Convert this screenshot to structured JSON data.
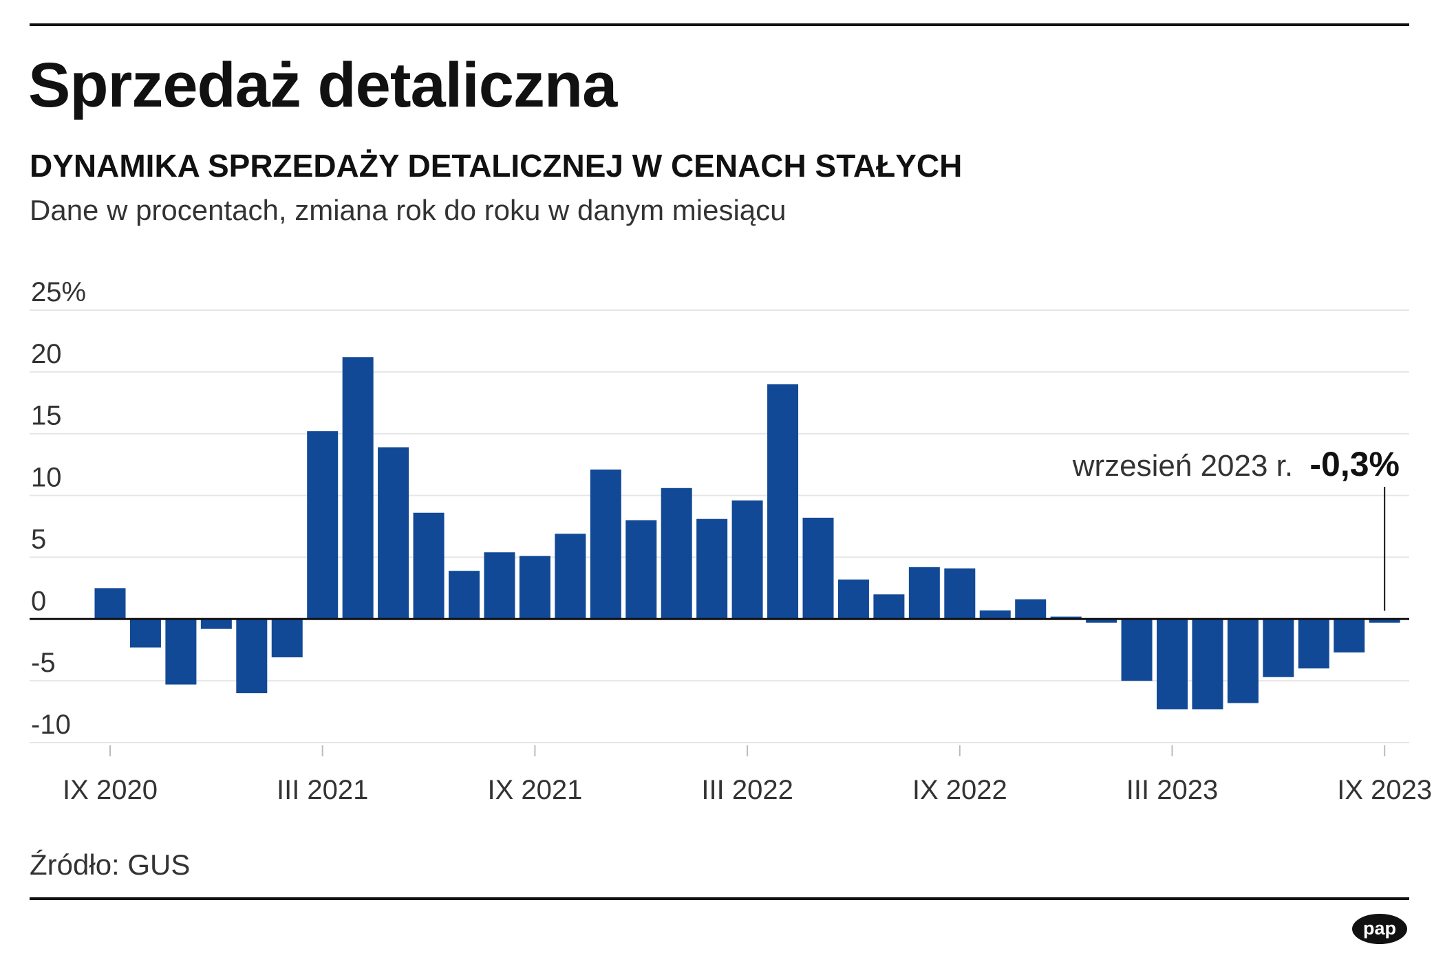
{
  "title": "Sprzedaż detaliczna",
  "subtitle": "DYNAMIKA SPRZEDAŻY DETALICZNEJ W CENACH STAŁYCH",
  "description": "Dane w procentach, zmiana rok do roku w danym miesiącu",
  "source": "Źródło: GUS",
  "logo_text": "pap",
  "colors": {
    "bar": "#124996",
    "grid": "#e6e6e6",
    "axis": "#111111",
    "text": "#333333"
  },
  "chart_data": {
    "type": "bar",
    "title": "DYNAMIKA SPRZEDAŻY DETALICZNEJ W CENACH STAŁYCH",
    "xlabel": "",
    "ylabel": "Dane w procentach, zmiana rok do roku w danym miesiącu",
    "ylim": [
      -10,
      25
    ],
    "y_ticks": [
      {
        "value": 25,
        "label": "25%"
      },
      {
        "value": 20,
        "label": "20"
      },
      {
        "value": 15,
        "label": "15"
      },
      {
        "value": 10,
        "label": "10"
      },
      {
        "value": 5,
        "label": "5"
      },
      {
        "value": 0,
        "label": "0"
      },
      {
        "value": -5,
        "label": "-5"
      },
      {
        "value": -10,
        "label": "-10"
      }
    ],
    "x_ticks": [
      {
        "index": 0,
        "label": "IX 2020"
      },
      {
        "index": 6,
        "label": "III 2021"
      },
      {
        "index": 12,
        "label": "IX 2021"
      },
      {
        "index": 18,
        "label": "III 2022"
      },
      {
        "index": 24,
        "label": "IX 2022"
      },
      {
        "index": 30,
        "label": "III 2023"
      },
      {
        "index": 36,
        "label": "IX 2023"
      }
    ],
    "categories": [
      "IX 2020",
      "X 2020",
      "XI 2020",
      "XII 2020",
      "I 2021",
      "II 2021",
      "III 2021",
      "IV 2021",
      "V 2021",
      "VI 2021",
      "VII 2021",
      "VIII 2021",
      "IX 2021",
      "X 2021",
      "XI 2021",
      "XII 2021",
      "I 2022",
      "II 2022",
      "III 2022",
      "IV 2022",
      "V 2022",
      "VI 2022",
      "VII 2022",
      "VIII 2022",
      "IX 2022",
      "X 2022",
      "XI 2022",
      "XII 2022",
      "I 2023",
      "II 2023",
      "III 2023",
      "IV 2023",
      "V 2023",
      "VI 2023",
      "VII 2023",
      "VIII 2023",
      "IX 2023"
    ],
    "values": [
      2.5,
      -2.3,
      -5.3,
      -0.8,
      -6.0,
      -3.1,
      15.2,
      21.2,
      13.9,
      8.6,
      3.9,
      5.4,
      5.1,
      6.9,
      12.1,
      8.0,
      10.6,
      8.1,
      9.6,
      19.0,
      8.2,
      3.2,
      2.0,
      4.2,
      4.1,
      0.7,
      1.6,
      0.2,
      -0.3,
      -5.0,
      -7.3,
      -7.3,
      -6.8,
      -4.7,
      -4.0,
      -2.7,
      -0.3
    ],
    "annotation": {
      "index": 36,
      "label": "wrzesień 2023 r.",
      "value_label": "-0,3%"
    }
  }
}
